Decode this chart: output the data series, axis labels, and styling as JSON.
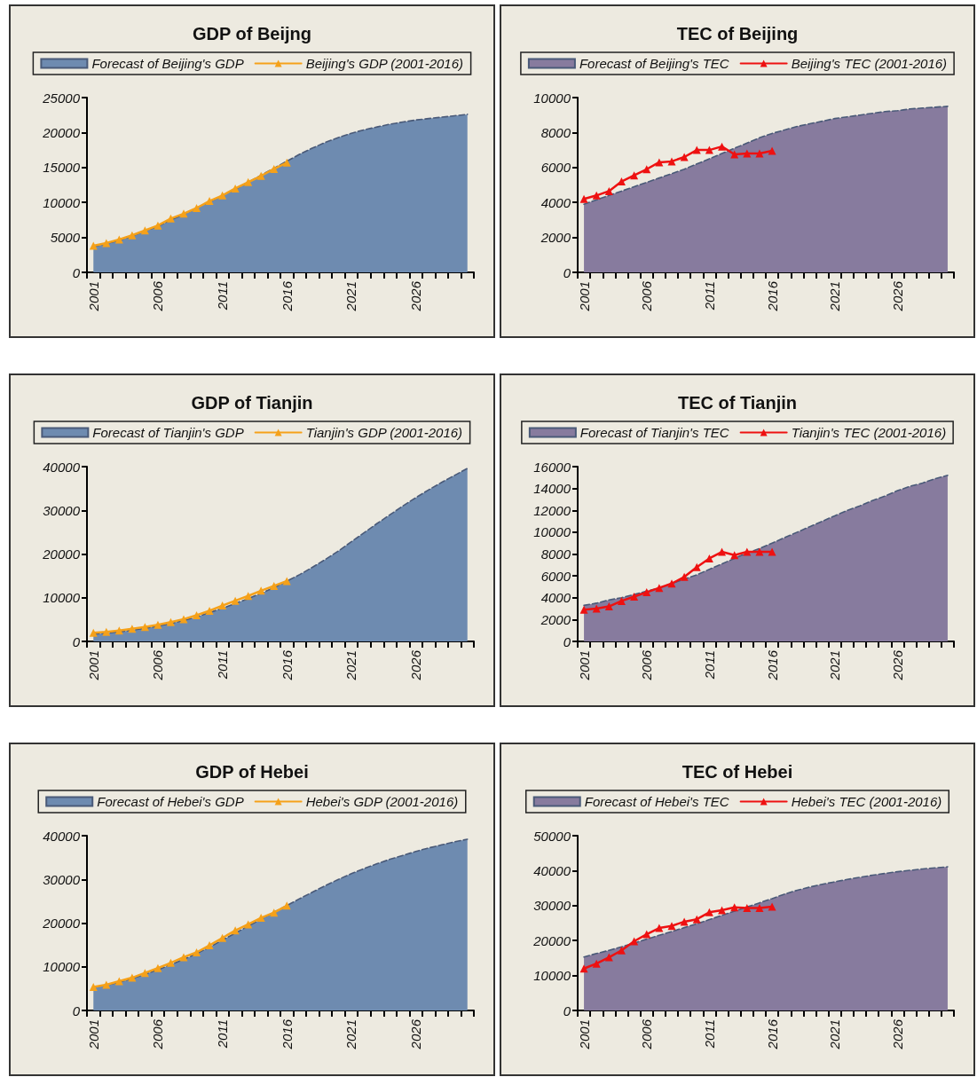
{
  "chart_data": [
    {
      "type": "line",
      "title": "GDP of Beijng",
      "categories": [
        "2001",
        null,
        null,
        null,
        null,
        "2006",
        null,
        null,
        null,
        null,
        "2011",
        null,
        null,
        null,
        null,
        "2016",
        null,
        null,
        null,
        null,
        "2021",
        null,
        null,
        null,
        null,
        "2026",
        null,
        null,
        null,
        null
      ],
      "ylim": [
        0,
        25000
      ],
      "yticks": [
        0,
        5000,
        10000,
        15000,
        20000,
        25000
      ],
      "legend": "top",
      "grid": false,
      "series": [
        {
          "type": "area",
          "name": "Forecast of Beijing's GDP",
          "color": "#6e8bb0",
          "line_style": "dashed",
          "marker": "none",
          "values": [
            3700,
            4100,
            4600,
            5200,
            5900,
            6600,
            7500,
            8300,
            9200,
            10100,
            11000,
            11900,
            12900,
            13900,
            14900,
            15900,
            16900,
            17800,
            18600,
            19300,
            19900,
            20400,
            20800,
            21200,
            21500,
            21800,
            22000,
            22200,
            22400,
            22600
          ]
        },
        {
          "type": "line",
          "name": "Beijing's GDP (2001-2016)",
          "color": "#f5a11a",
          "line_style": "solid",
          "marker": "triangle",
          "values": [
            3800,
            4200,
            4700,
            5300,
            6000,
            6700,
            7700,
            8400,
            9200,
            10200,
            11000,
            12000,
            12900,
            13800,
            14800,
            15700,
            null,
            null,
            null,
            null,
            null,
            null,
            null,
            null,
            null,
            null,
            null,
            null,
            null,
            null
          ]
        }
      ]
    },
    {
      "type": "line",
      "title": "TEC of Beijing",
      "categories": [
        "2001",
        null,
        null,
        null,
        null,
        "2006",
        null,
        null,
        null,
        null,
        "2011",
        null,
        null,
        null,
        null,
        "2016",
        null,
        null,
        null,
        null,
        "2021",
        null,
        null,
        null,
        null,
        "2026",
        null,
        null,
        null,
        null
      ],
      "ylim": [
        0,
        10000
      ],
      "yticks": [
        0,
        2000,
        4000,
        6000,
        8000,
        10000
      ],
      "legend": "top",
      "grid": false,
      "series": [
        {
          "type": "area",
          "name": "Forecast of Beijing's TEC",
          "color": "#877b9e",
          "line_style": "dashed",
          "marker": "none",
          "values": [
            3900,
            4150,
            4400,
            4650,
            4900,
            5150,
            5400,
            5650,
            5900,
            6200,
            6500,
            6800,
            7100,
            7400,
            7700,
            7950,
            8150,
            8350,
            8500,
            8650,
            8800,
            8900,
            9000,
            9100,
            9200,
            9250,
            9350,
            9400,
            9450,
            9500
          ]
        },
        {
          "type": "line",
          "name": "Beijing's TEC (2001-2016)",
          "color": "#ee1111",
          "line_style": "solid",
          "marker": "triangle",
          "values": [
            4200,
            4400,
            4650,
            5200,
            5550,
            5900,
            6300,
            6350,
            6600,
            7000,
            7000,
            7200,
            6750,
            6800,
            6800,
            6950,
            null,
            null,
            null,
            null,
            null,
            null,
            null,
            null,
            null,
            null,
            null,
            null,
            null,
            null
          ]
        }
      ]
    },
    {
      "type": "line",
      "title": "GDP of Tianjin",
      "categories": [
        "2001",
        null,
        null,
        null,
        null,
        "2006",
        null,
        null,
        null,
        null,
        "2011",
        null,
        null,
        null,
        null,
        "2016",
        null,
        null,
        null,
        null,
        "2021",
        null,
        null,
        null,
        null,
        "2026",
        null,
        null,
        null,
        null
      ],
      "ylim": [
        0,
        40000
      ],
      "yticks": [
        0,
        10000,
        20000,
        30000,
        40000
      ],
      "legend": "top",
      "grid": false,
      "series": [
        {
          "type": "area",
          "name": "Forecast of Tianjin's GDP",
          "color": "#6e8bb0",
          "line_style": "dashed",
          "marker": "none",
          "values": [
            1700,
            1900,
            2200,
            2600,
            3000,
            3500,
            4100,
            4800,
            5600,
            6600,
            7600,
            8700,
            9800,
            11000,
            12300,
            13800,
            15300,
            17000,
            18800,
            20700,
            22800,
            24900,
            27000,
            29000,
            31000,
            32900,
            34700,
            36400,
            38000,
            39600
          ]
        },
        {
          "type": "line",
          "name": "Tianjin's GDP (2001-2016)",
          "color": "#f5a11a",
          "line_style": "solid",
          "marker": "triangle",
          "values": [
            2000,
            2200,
            2500,
            2900,
            3300,
            3800,
            4400,
            5100,
            6000,
            7000,
            8200,
            9300,
            10400,
            11600,
            12700,
            13800,
            null,
            null,
            null,
            null,
            null,
            null,
            null,
            null,
            null,
            null,
            null,
            null,
            null,
            null
          ]
        }
      ]
    },
    {
      "type": "line",
      "title": "TEC of Tianjin",
      "categories": [
        "2001",
        null,
        null,
        null,
        null,
        "2006",
        null,
        null,
        null,
        null,
        "2011",
        null,
        null,
        null,
        null,
        "2016",
        null,
        null,
        null,
        null,
        "2021",
        null,
        null,
        null,
        null,
        "2026",
        null,
        null,
        null,
        null
      ],
      "ylim": [
        0,
        16000
      ],
      "yticks": [
        0,
        2000,
        4000,
        6000,
        8000,
        10000,
        12000,
        14000,
        16000
      ],
      "legend": "top",
      "grid": false,
      "series": [
        {
          "type": "area",
          "name": "Forecast of Tianjin's TEC",
          "color": "#877b9e",
          "line_style": "dashed",
          "marker": "none",
          "values": [
            3300,
            3500,
            3800,
            4000,
            4300,
            4600,
            4900,
            5300,
            5700,
            6100,
            6600,
            7100,
            7600,
            8100,
            8500,
            9000,
            9500,
            10000,
            10500,
            11000,
            11500,
            12000,
            12400,
            12900,
            13300,
            13800,
            14200,
            14500,
            14900,
            15200
          ]
        },
        {
          "type": "line",
          "name": "Tianjin's TEC (2001-2016)",
          "color": "#ee1111",
          "line_style": "solid",
          "marker": "triangle",
          "values": [
            2900,
            3000,
            3200,
            3700,
            4100,
            4500,
            4900,
            5300,
            5900,
            6800,
            7600,
            8200,
            7900,
            8200,
            8200,
            8200,
            null,
            null,
            null,
            null,
            null,
            null,
            null,
            null,
            null,
            null,
            null,
            null,
            null,
            null
          ]
        }
      ]
    },
    {
      "type": "line",
      "title": "GDP of Hebei",
      "categories": [
        "2001",
        null,
        null,
        null,
        null,
        "2006",
        null,
        null,
        null,
        null,
        "2011",
        null,
        null,
        null,
        null,
        "2016",
        null,
        null,
        null,
        null,
        "2021",
        null,
        null,
        null,
        null,
        "2026",
        null,
        null,
        null,
        null
      ],
      "ylim": [
        0,
        40000
      ],
      "yticks": [
        0,
        10000,
        20000,
        30000,
        40000
      ],
      "legend": "top",
      "grid": false,
      "series": [
        {
          "type": "area",
          "name": "Forecast of Hebei's GDP",
          "color": "#6e8bb0",
          "line_style": "dashed",
          "marker": "none",
          "values": [
            5300,
            5800,
            6500,
            7300,
            8300,
            9300,
            10500,
            11700,
            13000,
            14500,
            16100,
            17700,
            19300,
            20900,
            22500,
            24000,
            25600,
            27100,
            28600,
            30000,
            31300,
            32500,
            33600,
            34600,
            35500,
            36400,
            37200,
            37900,
            38600,
            39200
          ]
        },
        {
          "type": "line",
          "name": "Hebei's GDP (2001-2016)",
          "color": "#f5a11a",
          "line_style": "solid",
          "marker": "triangle",
          "values": [
            5400,
            5900,
            6700,
            7500,
            8600,
            9700,
            10900,
            12200,
            13300,
            14900,
            16600,
            18300,
            19700,
            21200,
            22400,
            24000,
            null,
            null,
            null,
            null,
            null,
            null,
            null,
            null,
            null,
            null,
            null,
            null,
            null,
            null
          ]
        }
      ]
    },
    {
      "type": "line",
      "title": "TEC of Hebei",
      "categories": [
        "2001",
        null,
        null,
        null,
        null,
        "2006",
        null,
        null,
        null,
        null,
        "2011",
        null,
        null,
        null,
        null,
        "2016",
        null,
        null,
        null,
        null,
        "2021",
        null,
        null,
        null,
        null,
        "2026",
        null,
        null,
        null,
        null
      ],
      "ylim": [
        0,
        50000
      ],
      "yticks": [
        0,
        10000,
        20000,
        30000,
        40000,
        50000
      ],
      "legend": "top",
      "grid": false,
      "series": [
        {
          "type": "area",
          "name": "Forecast of Hebei's TEC",
          "color": "#877b9e",
          "line_style": "dashed",
          "marker": "none",
          "values": [
            15300,
            16300,
            17200,
            18200,
            19300,
            20400,
            21500,
            22600,
            23700,
            24800,
            26000,
            27200,
            28400,
            29600,
            30800,
            32000,
            33300,
            34400,
            35300,
            36100,
            36800,
            37500,
            38100,
            38700,
            39200,
            39700,
            40100,
            40500,
            40800,
            41100
          ]
        },
        {
          "type": "line",
          "name": "Hebei's TEC (2001-2016)",
          "color": "#ee1111",
          "line_style": "solid",
          "marker": "triangle",
          "values": [
            12000,
            13400,
            15200,
            17200,
            19800,
            21800,
            23600,
            24200,
            25400,
            26100,
            28100,
            28700,
            29500,
            29300,
            29300,
            29700,
            null,
            null,
            null,
            null,
            null,
            null,
            null,
            null,
            null,
            null,
            null,
            null,
            null,
            null
          ]
        }
      ]
    }
  ]
}
